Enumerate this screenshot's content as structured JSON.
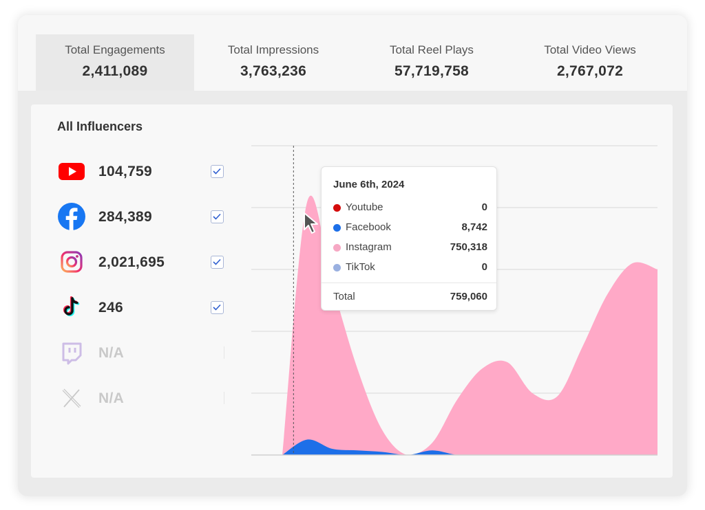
{
  "tabs": [
    {
      "label": "Total Engagements",
      "value": "2,411,089",
      "active": true
    },
    {
      "label": "Total Impressions",
      "value": "3,763,236",
      "active": false
    },
    {
      "label": "Total Reel Plays",
      "value": "57,719,758",
      "active": false
    },
    {
      "label": "Total Video Views",
      "value": "2,767,072",
      "active": false
    }
  ],
  "card": {
    "title": "All Influencers",
    "platforms": [
      {
        "icon": "youtube-icon",
        "value": "104,759",
        "checked": true,
        "enabled": true
      },
      {
        "icon": "facebook-icon",
        "value": "284,389",
        "checked": true,
        "enabled": true
      },
      {
        "icon": "instagram-icon",
        "value": "2,021,695",
        "checked": true,
        "enabled": true
      },
      {
        "icon": "tiktok-icon",
        "value": "246",
        "checked": true,
        "enabled": true
      },
      {
        "icon": "twitch-icon",
        "value": "N/A",
        "checked": false,
        "enabled": false
      },
      {
        "icon": "x-icon",
        "value": "N/A",
        "checked": false,
        "enabled": false
      }
    ]
  },
  "tooltip": {
    "date": "June 6th, 2024",
    "rows": [
      {
        "name": "Youtube",
        "value": "0",
        "color": "#d40c0c"
      },
      {
        "name": "Facebook",
        "value": "8,742",
        "color": "#1d6fe8"
      },
      {
        "name": "Instagram",
        "value": "750,318",
        "color": "#f6a8c4"
      },
      {
        "name": "TikTok",
        "value": "0",
        "color": "#9ab0e0"
      }
    ],
    "total_label": "Total",
    "total_value": "759,060"
  },
  "chart_data": {
    "type": "area",
    "gridlines": 5,
    "series": [
      {
        "name": "Instagram",
        "color": "#ffa9c7",
        "relative_height": [
          0.0,
          0.82,
          0.55,
          0.28,
          0.08,
          0.0,
          0.04,
          0.18,
          0.28,
          0.3,
          0.2,
          0.19,
          0.35,
          0.52,
          0.62,
          0.6
        ]
      },
      {
        "name": "Facebook",
        "color": "#1d6fe8",
        "relative_height": [
          0.0,
          0.05,
          0.02,
          0.015,
          0.01,
          0.0,
          0.015,
          0.0,
          0.0,
          0.0,
          0.0,
          0.0,
          0.0,
          0.0,
          0.0,
          0.0
        ]
      }
    ],
    "hover_index": 1
  }
}
